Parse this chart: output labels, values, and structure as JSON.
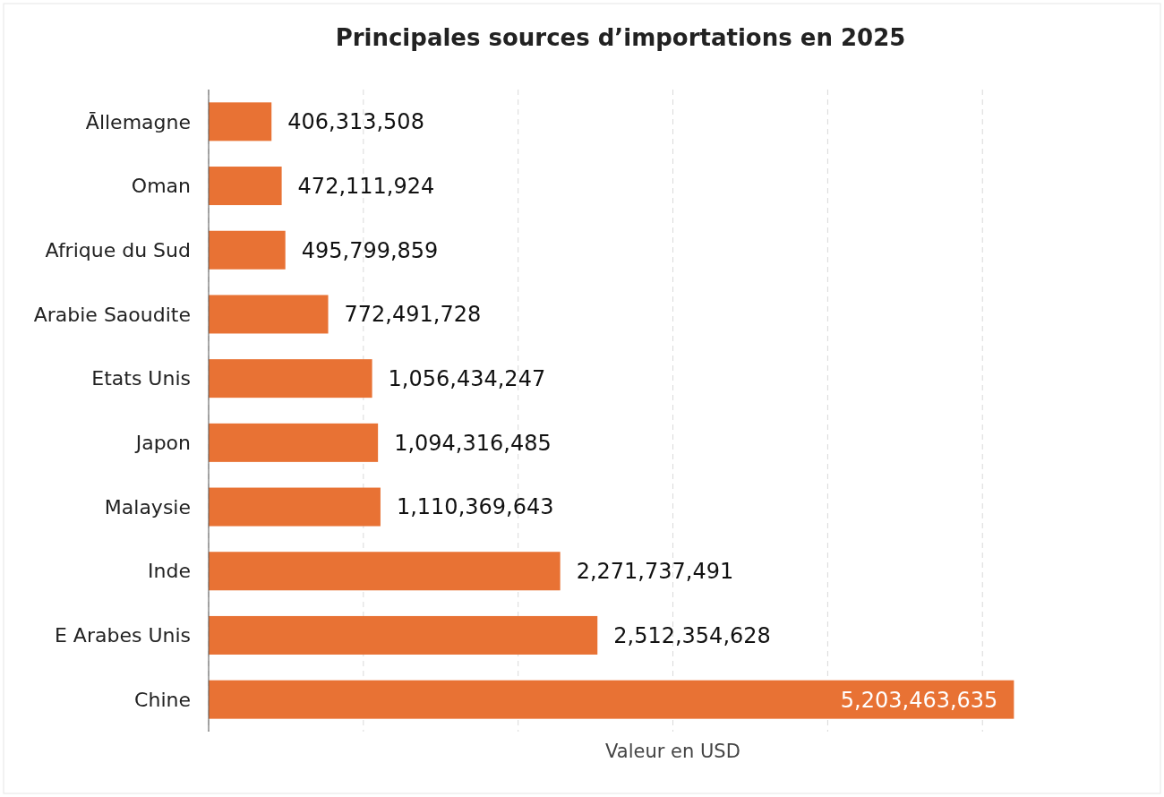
{
  "chart_data": {
    "type": "bar",
    "orientation": "horizontal",
    "title": "Principales sources d’importations en 2025",
    "xlabel": "Valeur en USD",
    "categories": [
      "Ᾱllemagne",
      "Oman",
      "Afrique du Sud",
      "Arabie Saoudite",
      "Etats Unis",
      "Japon",
      "Malaysie",
      "Inde",
      "E Arabes Unis",
      "Chine"
    ],
    "values": [
      406313508,
      472111924,
      495799859,
      772491728,
      1056434247,
      1094316485,
      1110369643,
      2271737491,
      2512354628,
      5203463635
    ],
    "value_labels": [
      "406,313,508",
      "472,111,924",
      "495,799,859",
      "772,491,728",
      "1,056,434,247",
      "1,094,316,485",
      "1,110,369,643",
      "2,271,737,491",
      "2,512,354,628",
      "5,203,463,635"
    ],
    "color": "#e87234",
    "grid": "x",
    "tick_labels": "y"
  }
}
